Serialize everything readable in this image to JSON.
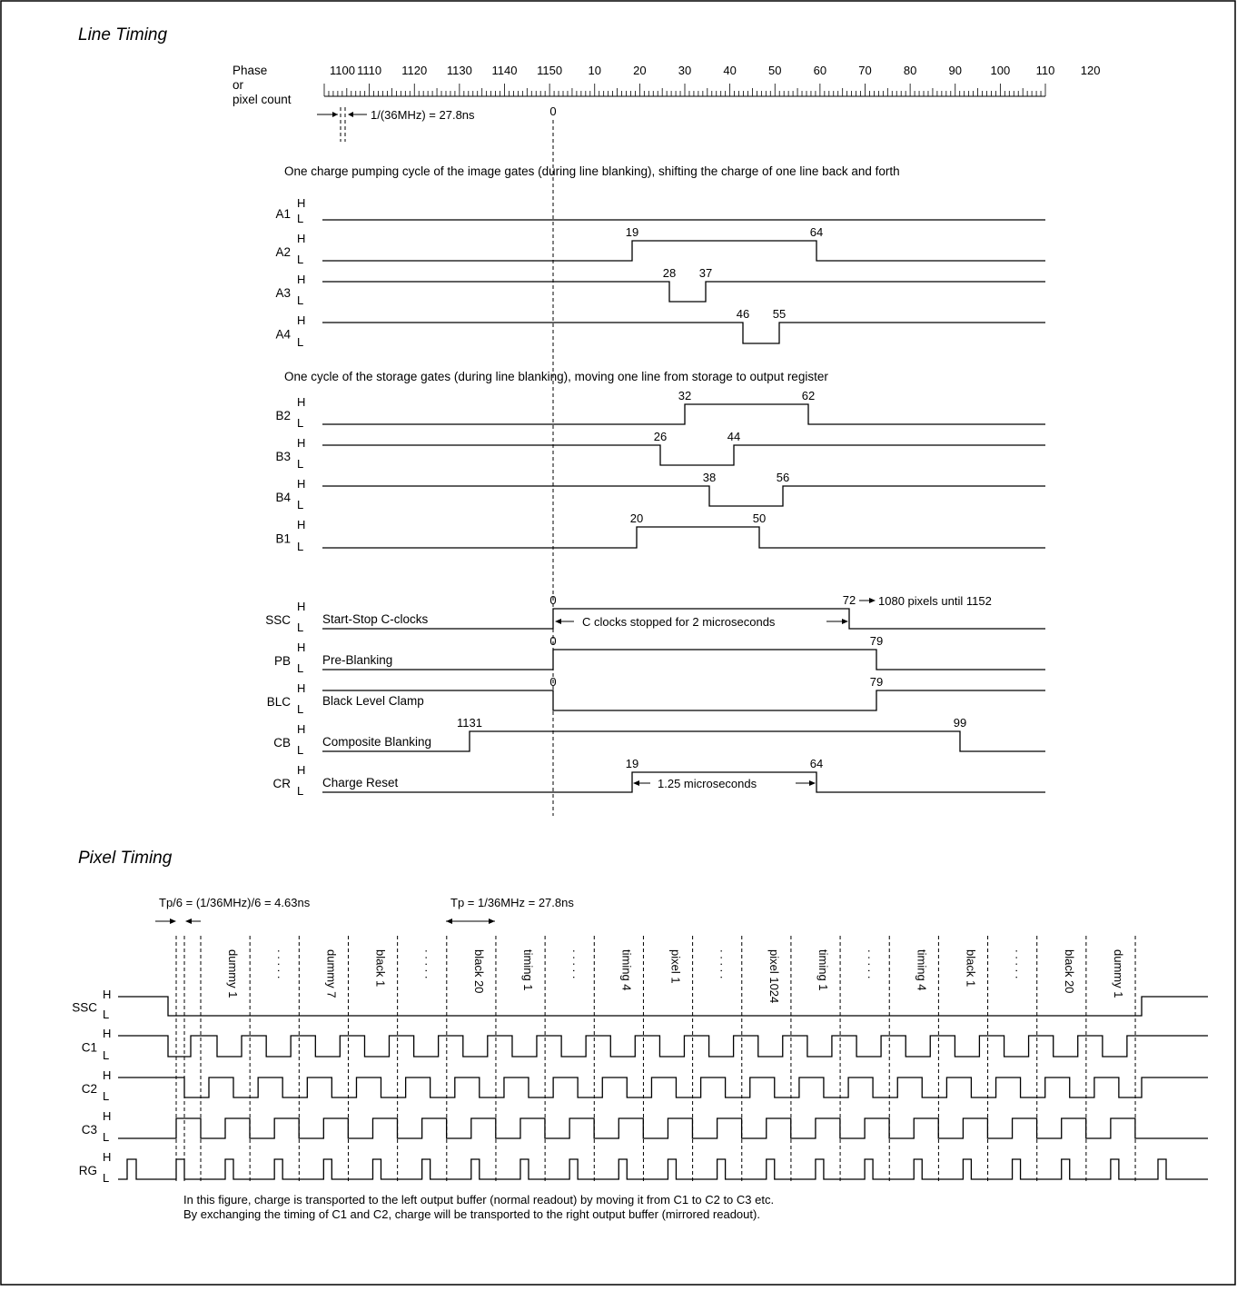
{
  "line_timing": {
    "title": "Line Timing",
    "phase_label": [
      "Phase",
      "or",
      "pixel count"
    ],
    "ruler_labels": [
      "1100",
      "1110",
      "1120",
      "1130",
      "1140",
      "1150",
      "10",
      "20",
      "30",
      "40",
      "50",
      "60",
      "70",
      "80",
      "90",
      "100",
      "110",
      "120"
    ],
    "zero_label": "0",
    "period_note": "1/(36MHz) = 27.8ns",
    "image_gates_caption": "One charge pumping cycle of the image gates (during line blanking), shifting the charge of one line back and forth",
    "storage_gates_caption": "One cycle of the storage gates (during line blanking), moving one line from storage to output register",
    "high": "H",
    "low": "L",
    "image_gates": [
      {
        "name": "A1",
        "marks": []
      },
      {
        "name": "A2",
        "marks": [
          "19",
          "64"
        ]
      },
      {
        "name": "A3",
        "marks": [
          "28",
          "37"
        ]
      },
      {
        "name": "A4",
        "marks": [
          "46",
          "55"
        ]
      }
    ],
    "storage_gates": [
      {
        "name": "B2",
        "marks": [
          "32",
          "62"
        ]
      },
      {
        "name": "B3",
        "marks": [
          "26",
          "44"
        ]
      },
      {
        "name": "B4",
        "marks": [
          "38",
          "56"
        ]
      },
      {
        "name": "B1",
        "marks": [
          "20",
          "50"
        ]
      }
    ],
    "control_signals": [
      {
        "name": "SSC",
        "description": "Start-Stop C-clocks",
        "marks": [
          "0",
          "72"
        ],
        "note": "C clocks stopped for 2 microseconds",
        "extra": "1080 pixels until 1152"
      },
      {
        "name": "PB",
        "description": "Pre-Blanking",
        "marks": [
          "0",
          "79"
        ]
      },
      {
        "name": "BLC",
        "description": "Black Level Clamp",
        "marks": [
          "0",
          "79"
        ]
      },
      {
        "name": "CB",
        "description": "Composite Blanking",
        "marks": [
          "1131",
          "99"
        ]
      },
      {
        "name": "CR",
        "description": "Charge Reset",
        "marks": [
          "19",
          "64"
        ],
        "note": "1.25 microseconds"
      }
    ]
  },
  "pixel_timing": {
    "title": "Pixel Timing",
    "tp6_label": "Tp/6 = (1/36MHz)/6 = 4.63ns",
    "tp_label": "Tp = 1/36MHz = 27.8ns",
    "slot_labels": [
      "dummy 1",
      ". . . . .",
      "dummy 7",
      "black 1",
      ". . . . .",
      "black 20",
      "timing 1",
      ". . . . .",
      "timing 4",
      "pixel 1",
      ". . . . .",
      "pixel 1024",
      "timing 1",
      ". . . . .",
      "timing 4",
      "black 1",
      ". . . . .",
      "black 20",
      "dummy 1"
    ],
    "signals": [
      "SSC",
      "C1",
      "C2",
      "C3",
      "RG"
    ],
    "footnote_1": "In this figure, charge is transported to the left output buffer (normal readout) by moving it from C1 to C2 to C3 etc.",
    "footnote_2": "By exchanging the timing of C1 and C2, charge will be transported to the right output buffer (mirrored readout)."
  }
}
